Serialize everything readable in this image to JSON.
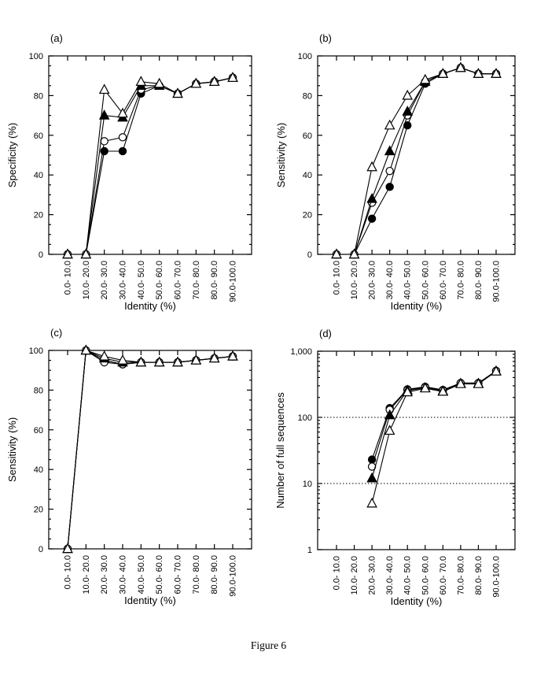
{
  "page": {
    "caption": "Figure 6",
    "background": "#ffffff",
    "ink": "#000000"
  },
  "chart_data": [
    {
      "panel": "(a)",
      "type": "line",
      "xlabel": "Identity (%)",
      "ylabel": "Specificity (%)",
      "yscale": "linear",
      "ylim": [
        0,
        100
      ],
      "ytick_major": 20,
      "ytick_minor": 5,
      "grid": false,
      "legend": "none",
      "categories": [
        "0.0- 10.0",
        "10.0- 20.0",
        "20.0- 30.0",
        "30.0- 40.0",
        "40.0- 50.0",
        "50.0- 60.0",
        "60.0- 70.0",
        "70.0- 80.0",
        "80.0- 90.0",
        "90.0-100.0"
      ],
      "series": [
        {
          "name": "open-triangle",
          "marker": "triangle-open",
          "values": [
            0,
            0,
            83,
            71,
            87,
            86,
            81,
            86,
            87,
            89
          ]
        },
        {
          "name": "filled-triangle",
          "marker": "triangle-filled",
          "values": [
            0,
            0,
            70,
            69,
            85,
            85,
            81,
            86,
            87,
            89
          ]
        },
        {
          "name": "open-circle",
          "marker": "circle-open",
          "values": [
            0,
            0,
            57,
            59,
            83,
            85,
            81,
            86,
            87,
            89
          ]
        },
        {
          "name": "filled-circle",
          "marker": "circle-filled",
          "values": [
            0,
            0,
            52,
            52,
            81,
            85,
            81,
            86,
            87,
            89
          ]
        }
      ]
    },
    {
      "panel": "(b)",
      "type": "line",
      "xlabel": "Identity (%)",
      "ylabel": "Sensitivity (%)",
      "yscale": "linear",
      "ylim": [
        0,
        100
      ],
      "ytick_major": 20,
      "ytick_minor": 5,
      "grid": false,
      "legend": "none",
      "categories": [
        "0.0- 10.0",
        "10.0- 20.0",
        "20.0- 30.0",
        "30.0- 40.0",
        "40.0- 50.0",
        "50.0- 60.0",
        "60.0- 70.0",
        "70.0- 80.0",
        "80.0- 90.0",
        "90.0-100.0"
      ],
      "series": [
        {
          "name": "open-triangle",
          "marker": "triangle-open",
          "values": [
            0,
            0,
            44,
            65,
            80,
            88,
            91,
            94,
            91,
            91
          ]
        },
        {
          "name": "filled-triangle",
          "marker": "triangle-filled",
          "values": [
            0,
            0,
            28,
            52,
            72,
            87,
            91,
            94,
            91,
            91
          ]
        },
        {
          "name": "open-circle",
          "marker": "circle-open",
          "values": [
            0,
            0,
            26,
            42,
            70,
            87,
            91,
            94,
            91,
            91
          ]
        },
        {
          "name": "filled-circle",
          "marker": "circle-filled",
          "values": [
            0,
            0,
            18,
            34,
            65,
            86,
            91,
            94,
            91,
            91
          ]
        }
      ]
    },
    {
      "panel": "(c)",
      "type": "line",
      "xlabel": "Identity (%)",
      "ylabel": "Sensitivity (%)",
      "yscale": "linear",
      "ylim": [
        0,
        100
      ],
      "ytick_major": 20,
      "ytick_minor": 5,
      "grid": false,
      "legend": "none",
      "categories": [
        "0.0- 10.0",
        "10.0- 20.0",
        "20.0- 30.0",
        "30.0- 40.0",
        "40.0- 50.0",
        "50.0- 60.0",
        "60.0- 70.0",
        "70.0- 80.0",
        "80.0- 90.0",
        "90.0-100.0"
      ],
      "series": [
        {
          "name": "open-triangle",
          "marker": "triangle-open",
          "values": [
            0,
            100,
            97,
            95,
            94,
            94,
            94,
            95,
            96,
            97
          ]
        },
        {
          "name": "filled-triangle",
          "marker": "triangle-filled",
          "values": [
            0,
            100,
            96,
            94,
            94,
            94,
            94,
            95,
            96,
            97
          ]
        },
        {
          "name": "open-circle",
          "marker": "circle-open",
          "values": [
            0,
            100,
            94,
            93,
            94,
            94,
            94,
            95,
            96,
            97
          ]
        },
        {
          "name": "filled-circle",
          "marker": "circle-filled",
          "values": [
            0,
            100,
            95,
            93,
            94,
            94,
            94,
            95,
            96,
            97
          ]
        }
      ]
    },
    {
      "panel": "(d)",
      "type": "line",
      "xlabel": "Identity (%)",
      "ylabel": "Number of full sequences",
      "yscale": "log",
      "ylim": [
        1,
        1000
      ],
      "ytick_labels": [
        "1",
        "10",
        "100",
        "1,000"
      ],
      "dotted_lines": [
        10,
        100
      ],
      "grid": false,
      "legend": "none",
      "categories": [
        "0.0- 10.0",
        "10.0- 20.0",
        "20.0- 30.0",
        "30.0- 40.0",
        "40.0- 50.0",
        "50.0- 60.0",
        "60.0- 70.0",
        "70.0- 80.0",
        "80.0- 90.0",
        "90.0-100.0"
      ],
      "series": [
        {
          "name": "open-triangle",
          "marker": "triangle-open",
          "values": [
            null,
            null,
            5,
            63,
            240,
            275,
            245,
            320,
            320,
            495
          ]
        },
        {
          "name": "filled-triangle",
          "marker": "triangle-filled",
          "values": [
            null,
            null,
            12,
            108,
            255,
            280,
            250,
            325,
            325,
            500
          ]
        },
        {
          "name": "open-circle",
          "marker": "circle-open",
          "values": [
            null,
            null,
            18,
            130,
            260,
            285,
            255,
            330,
            330,
            505
          ]
        },
        {
          "name": "filled-circle",
          "marker": "circle-filled",
          "values": [
            null,
            null,
            23,
            138,
            265,
            290,
            260,
            330,
            330,
            505
          ]
        }
      ]
    }
  ]
}
